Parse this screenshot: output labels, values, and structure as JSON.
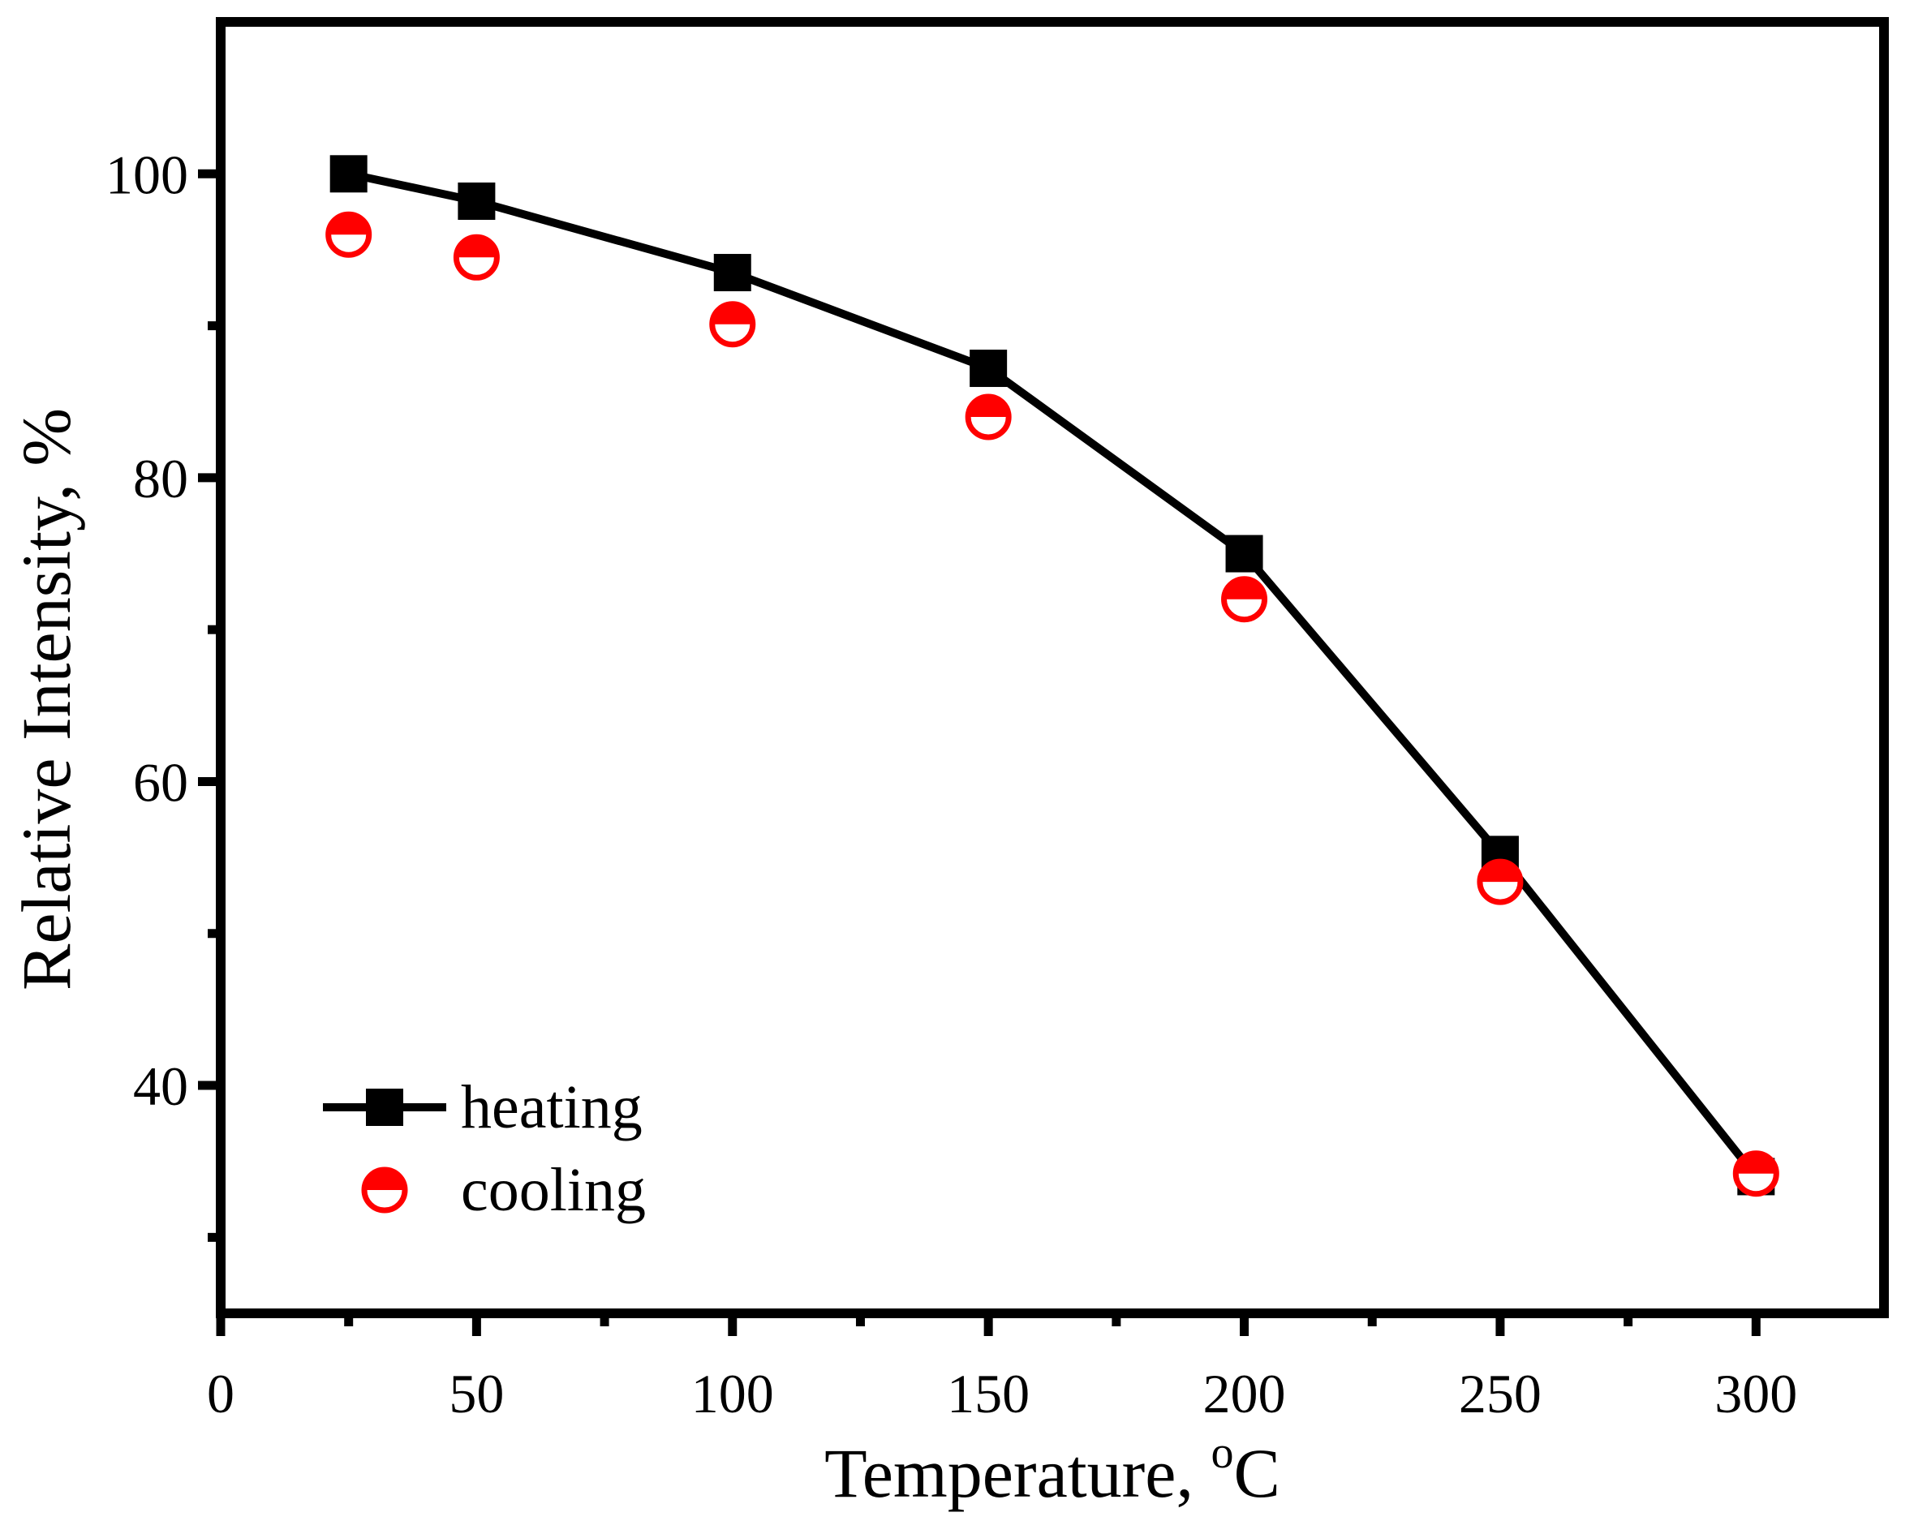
{
  "chart_data": {
    "type": "line",
    "title": "",
    "xlabel": "Temperature, ",
    "xlabel_superscript": "o",
    "xlabel_unit": "C",
    "ylabel": "Relative Intensity, %",
    "xlim": [
      0,
      325
    ],
    "ylim": [
      25,
      110
    ],
    "xticks": [
      0,
      50,
      100,
      150,
      200,
      250,
      300
    ],
    "xtick_labels": [
      "0",
      "50",
      "100",
      "150",
      "200",
      "250",
      "300"
    ],
    "x_minor_ticks": [
      25,
      75,
      125,
      175,
      225,
      275
    ],
    "yticks": [
      40,
      60,
      80,
      100
    ],
    "ytick_labels": [
      "40",
      "60",
      "80",
      "100"
    ],
    "y_minor_ticks": [
      30,
      50,
      70,
      90
    ],
    "grid": false,
    "legend_position": "bottom-left",
    "series": [
      {
        "name": "heating",
        "marker": "square",
        "line": true,
        "color": "#000000",
        "x": [
          25,
          50,
          100,
          150,
          200,
          250,
          300
        ],
        "y": [
          100,
          98.2,
          93.5,
          87.2,
          75.0,
          55.2,
          34.0
        ]
      },
      {
        "name": "cooling",
        "marker": "half-filled-circle",
        "line": false,
        "color": "#ff0000",
        "x": [
          25,
          50,
          100,
          150,
          200,
          250,
          300
        ],
        "y": [
          96.0,
          94.5,
          90.1,
          84.0,
          72.0,
          53.4,
          34.2
        ]
      }
    ]
  }
}
